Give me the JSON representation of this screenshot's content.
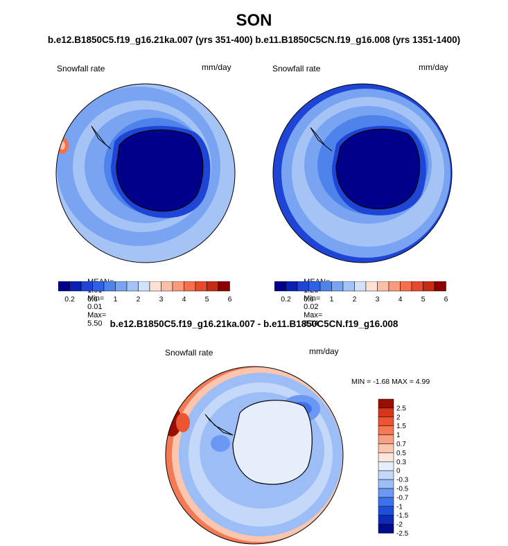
{
  "title": "SON",
  "case_title": "b.e12.B1850C5.f19_g16.21ka.007 (yrs 351-400) b.e11.B1850C5CN.f19_g16.008 (yrs 1351-1400)",
  "diff_title": "b.e12.B1850C5.f19_g16.21ka.007 - b.e11.B1850C5CN.f19_g16.008",
  "colors": {
    "abs_scale": [
      "#00008b",
      "#0a1fb4",
      "#1e45d6",
      "#2e62e6",
      "#4f83ec",
      "#78a4f2",
      "#a6c3f6",
      "#d2e2fb",
      "#fde0d4",
      "#fbbfa8",
      "#f89a7b",
      "#f47150",
      "#e8492b",
      "#c62b14",
      "#8b0000"
    ],
    "diff_scale": [
      "#000b8d",
      "#0c2cb8",
      "#1d4fda",
      "#3e72ec",
      "#6b98f2",
      "#9dbdf6",
      "#c4d8f9",
      "#e6eefc",
      "#fde6d9",
      "#fbc6ad",
      "#f8a07f",
      "#f47a55",
      "#ec5530",
      "#d4371a",
      "#9a0e00"
    ],
    "land": "#000000"
  },
  "panels": [
    {
      "field_label": "Snowfall rate",
      "units": "mm/day",
      "stats": {
        "mean_label": "MEAN=",
        "mean": "1.01",
        "min_label": "Min=",
        "min": "0.01",
        "max_label": "Max=",
        "max": "5.50"
      },
      "colorbar_ticks": [
        "0.2",
        "0.6",
        "1",
        "2",
        "3",
        "4",
        "5",
        "6"
      ]
    },
    {
      "field_label": "Snowfall rate",
      "units": "mm/day",
      "stats": {
        "mean_label": "MEAN=",
        "mean": "1.23",
        "min_label": "Min=",
        "min": "0.02",
        "max_label": "Max=",
        "max": "3.14"
      },
      "colorbar_ticks": [
        "0.2",
        "0.6",
        "1",
        "2",
        "3",
        "4",
        "5",
        "6"
      ]
    }
  ],
  "diff_panel": {
    "field_label": "Snowfall rate",
    "units": "mm/day",
    "minmax_text": "MIN = -1.68 MAX = 4.99",
    "colorbar_labels": [
      "2.5",
      "2",
      "1.5",
      "1",
      "0.7",
      "0.5",
      "0.3",
      "0",
      "-0.3",
      "-0.5",
      "-0.7",
      "-1",
      "-1.5",
      "-2",
      "-2.5"
    ]
  }
}
